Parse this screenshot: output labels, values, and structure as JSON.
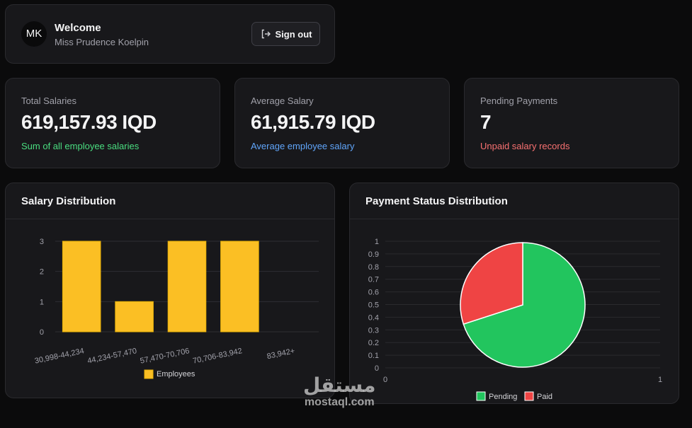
{
  "header": {
    "avatar_initials": "MK",
    "welcome": "Welcome",
    "user_name": "Miss Prudence Koelpin",
    "sign_out": "Sign out"
  },
  "stats": [
    {
      "label": "Total Salaries",
      "value": "619,157.93 IQD",
      "note": "Sum of all employee salaries",
      "note_color": "#4ade80"
    },
    {
      "label": "Average Salary",
      "value": "61,915.79 IQD",
      "note": "Average employee salary",
      "note_color": "#60a5fa"
    },
    {
      "label": "Pending Payments",
      "value": "7",
      "note": "Unpaid salary records",
      "note_color": "#f87171"
    }
  ],
  "salary_chart": {
    "title": "Salary Distribution"
  },
  "payment_chart": {
    "title": "Payment Status Distribution"
  },
  "chart_data": [
    {
      "type": "bar",
      "title": "Salary Distribution",
      "categories": [
        "30,998-44,234",
        "44,234-57,470",
        "57,470-70,706",
        "70,706-83,942",
        "83,942+"
      ],
      "series": [
        {
          "name": "Employees",
          "values": [
            3,
            1,
            3,
            3,
            0
          ],
          "color": "#fbbf24"
        }
      ],
      "ylim": [
        0,
        3
      ],
      "yticks": [
        "0",
        "1",
        "2",
        "3"
      ],
      "legend": "bottom"
    },
    {
      "type": "pie",
      "title": "Payment Status Distribution",
      "slices": [
        {
          "name": "Pending",
          "value": 7,
          "color": "#22c55e"
        },
        {
          "name": "Paid",
          "value": 3,
          "color": "#ef4444"
        }
      ],
      "yticks": [
        "1",
        "0.9",
        "0.8",
        "0.7",
        "0.6",
        "0.5",
        "0.4",
        "0.3",
        "0.2",
        "0.1",
        "0"
      ],
      "xticks": [
        "0",
        "1"
      ],
      "legend": "bottom"
    }
  ],
  "watermark": {
    "arabic": "مستقل",
    "latin": "mostaql.com"
  }
}
